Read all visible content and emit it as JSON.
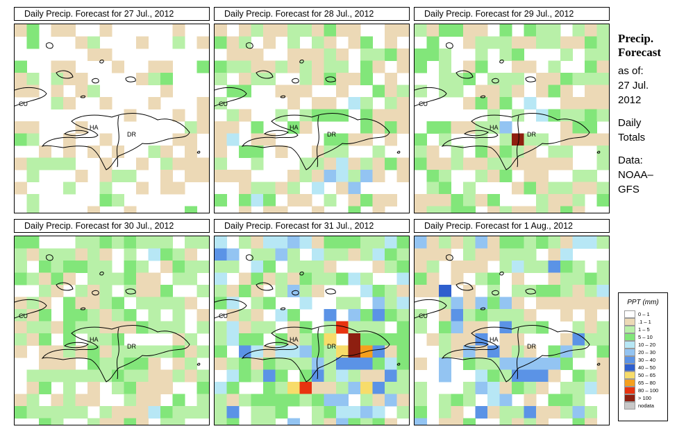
{
  "panels": [
    {
      "title": "Daily Precip. Forecast for  27 Jul., 2012",
      "day": 0
    },
    {
      "title": "Daily Precip. Forecast for  28 Jul., 2012",
      "day": 1
    },
    {
      "title": "Daily Precip. Forecast for  29 Jul., 2012",
      "day": 2
    },
    {
      "title": "Daily Precip. Forecast for  30 Jul., 2012",
      "day": 3
    },
    {
      "title": "Daily Precip. Forecast for  31 Jul., 2012",
      "day": 4
    },
    {
      "title": "Daily Precip. Forecast for  1 Aug., 2012",
      "day": 5
    }
  ],
  "map_labels": {
    "cuba": "CU",
    "haiti": "HA",
    "dr": "DR"
  },
  "sidebar": {
    "heading1": "Precip.",
    "heading2": "Forecast",
    "asof": "as of:",
    "date1": "27 Jul.",
    "date2": "2012",
    "totals1": "Daily",
    "totals2": "Totals",
    "data1": "Data:",
    "data2": "NOAA–",
    "data3": "GFS"
  },
  "legend": {
    "title": "PPT (mm)",
    "items": [
      {
        "label": "0 – 1",
        "color": "#ffffff"
      },
      {
        "label": ".1 – 1",
        "color": "#ecd9b6"
      },
      {
        "label": "1 – 5",
        "color": "#b8f0a8"
      },
      {
        "label": "5 – 10",
        "color": "#82e67a"
      },
      {
        "label": "10 – 20",
        "color": "#b7e7f5"
      },
      {
        "label": "20 – 30",
        "color": "#93c4f2"
      },
      {
        "label": "30 – 40",
        "color": "#5b93e6"
      },
      {
        "label": "40 – 50",
        "color": "#2e5fce"
      },
      {
        "label": "50 – 65",
        "color": "#f7dc6a"
      },
      {
        "label": "65 – 80",
        "color": "#f5a01e"
      },
      {
        "label": "80 – 100",
        "color": "#e8330f"
      },
      {
        "label": "> 100",
        "color": "#8e1f10"
      },
      {
        "label": "nodata",
        "color": "#c8c8c8"
      }
    ]
  }
}
